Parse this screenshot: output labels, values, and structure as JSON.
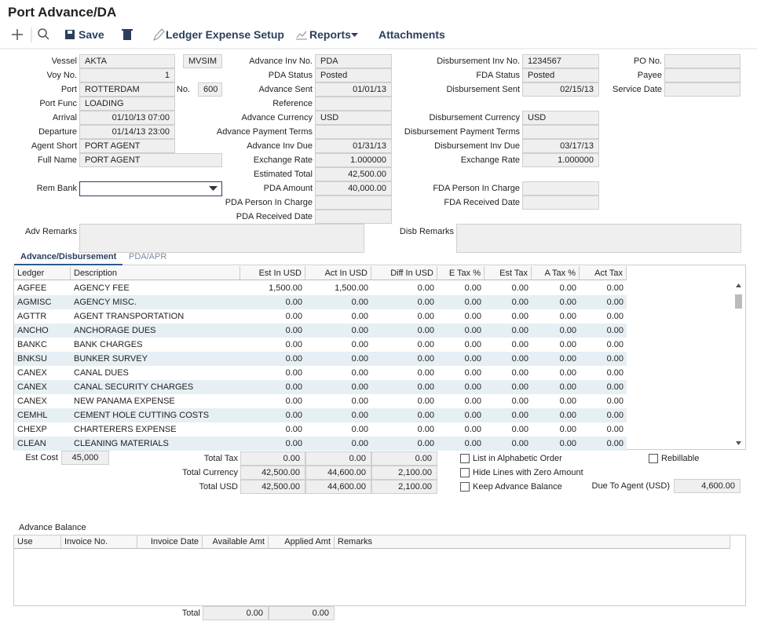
{
  "header": {
    "title": "Port Advance/DA"
  },
  "toolbar": {
    "save": "Save",
    "ledger_expense_setup": "Ledger Expense Setup",
    "reports": "Reports",
    "attachments": "Attachments"
  },
  "form": {
    "fields": [
      {
        "label": "Vessel",
        "value": "AKTA"
      },
      {
        "value": "MVSIM"
      },
      {
        "label": "Voy No.",
        "value": "1"
      },
      {
        "label": "Port",
        "value": "ROTTERDAM"
      },
      {
        "label": "No.",
        "value": "600"
      },
      {
        "label": "Port Func",
        "value": "LOADING"
      },
      {
        "label": "Arrival",
        "value": "01/10/13 07:00"
      },
      {
        "label": "Departure",
        "value": "01/14/13 23:00"
      },
      {
        "label": "Agent Short",
        "value": "PORT AGENT"
      },
      {
        "label": "Full Name",
        "value": "PORT AGENT"
      },
      {
        "label": "Advance Inv No.",
        "value": "PDA"
      },
      {
        "label": "PDA Status",
        "value": "Posted"
      },
      {
        "label": "Advance Sent",
        "value": "01/01/13"
      },
      {
        "label": "Reference"
      },
      {
        "label": "Advance Currency",
        "value": "USD"
      },
      {
        "label": "Advance Payment Terms"
      },
      {
        "label": "Advance Inv Due",
        "value": "01/31/13"
      },
      {
        "label": "Exchange Rate",
        "value": "1.000000"
      },
      {
        "label": "Estimated Total",
        "value": "42,500.00"
      },
      {
        "label": "PDA Amount",
        "value": "40,000.00"
      },
      {
        "label": "PDA Person In Charge"
      },
      {
        "label": "PDA Received Date"
      },
      {
        "label": "Disbursement Inv No.",
        "value": "1234567"
      },
      {
        "label": "FDA Status",
        "value": "Posted"
      },
      {
        "label": "Disbursement Sent",
        "value": "02/15/13"
      },
      {
        "label": "Disbursement Currency",
        "value": "USD"
      },
      {
        "label": "Disbursement Payment Terms"
      },
      {
        "label": "Disbursement Inv Due",
        "value": "03/17/13"
      },
      {
        "label": "Exchange Rate",
        "value": "1.000000"
      },
      {
        "label": "FDA Person In Charge"
      },
      {
        "label": "FDA Received Date"
      },
      {
        "label": "PO No."
      },
      {
        "label": "Payee"
      },
      {
        "label": "Service Date"
      }
    ],
    "rem_bank": {
      "label": "Rem Bank"
    },
    "adv_remarks": {
      "label": "Adv Remarks"
    },
    "disb_remarks": {
      "label": "Disb Remarks"
    }
  },
  "tabs": [
    "Advance/Disbursement",
    "PDA/APR"
  ],
  "ledger_grid": {
    "columns": [
      "Ledger",
      "Description",
      "Est In USD",
      "Act In USD",
      "Diff In USD",
      "E Tax %",
      "Est Tax",
      "A Tax %",
      "Act Tax"
    ],
    "rows": [
      [
        "AGFEE",
        "AGENCY FEE",
        "1,500.00",
        "1,500.00",
        "0.00",
        "0.00",
        "0.00",
        "0.00",
        "0.00"
      ],
      [
        "AGMISC",
        "AGENCY MISC.",
        "0.00",
        "0.00",
        "0.00",
        "0.00",
        "0.00",
        "0.00",
        "0.00"
      ],
      [
        "AGTTR",
        "AGENT TRANSPORTATION",
        "0.00",
        "0.00",
        "0.00",
        "0.00",
        "0.00",
        "0.00",
        "0.00"
      ],
      [
        "ANCHO",
        "ANCHORAGE DUES",
        "0.00",
        "0.00",
        "0.00",
        "0.00",
        "0.00",
        "0.00",
        "0.00"
      ],
      [
        "BANKC",
        "BANK CHARGES",
        "0.00",
        "0.00",
        "0.00",
        "0.00",
        "0.00",
        "0.00",
        "0.00"
      ],
      [
        "BNKSU",
        "BUNKER SURVEY",
        "0.00",
        "0.00",
        "0.00",
        "0.00",
        "0.00",
        "0.00",
        "0.00"
      ],
      [
        "CANEX",
        "CANAL DUES",
        "0.00",
        "0.00",
        "0.00",
        "0.00",
        "0.00",
        "0.00",
        "0.00"
      ],
      [
        "CANEX",
        "CANAL SECURITY CHARGES",
        "0.00",
        "0.00",
        "0.00",
        "0.00",
        "0.00",
        "0.00",
        "0.00"
      ],
      [
        "CANEX",
        "NEW PANAMA EXPENSE",
        "0.00",
        "0.00",
        "0.00",
        "0.00",
        "0.00",
        "0.00",
        "0.00"
      ],
      [
        "CEMHL",
        "CEMENT HOLE CUTTING COSTS",
        "0.00",
        "0.00",
        "0.00",
        "0.00",
        "0.00",
        "0.00",
        "0.00"
      ],
      [
        "CHEXP",
        "CHARTERERS EXPENSE",
        "0.00",
        "0.00",
        "0.00",
        "0.00",
        "0.00",
        "0.00",
        "0.00"
      ],
      [
        "CLEAN",
        "CLEANING MATERIALS",
        "0.00",
        "0.00",
        "0.00",
        "0.00",
        "0.00",
        "0.00",
        "0.00"
      ]
    ]
  },
  "totals": {
    "est_cost": {
      "label": "Est Cost",
      "value": "45,000"
    },
    "rows": [
      {
        "label": "Total Tax",
        "values": [
          "0.00",
          "0.00",
          "0.00"
        ]
      },
      {
        "label": "Total Currency",
        "values": [
          "42,500.00",
          "44,600.00",
          "2,100.00"
        ]
      },
      {
        "label": "Total USD",
        "values": [
          "42,500.00",
          "44,600.00",
          "2,100.00"
        ]
      }
    ],
    "due_to_agent": {
      "label": "Due To Agent (USD)",
      "value": "4,600.00"
    }
  },
  "options": [
    "List in Alphabetic Order",
    "Hide Lines with Zero Amount",
    "Keep Advance Balance",
    "Rebillable"
  ],
  "advance_balance": {
    "title": "Advance Balance",
    "columns": [
      "Use",
      "Invoice No.",
      "Invoice Date",
      "Available Amt",
      "Applied Amt",
      "Remarks"
    ],
    "total": {
      "label": "Total",
      "values": [
        "0.00",
        "0.00"
      ]
    }
  }
}
